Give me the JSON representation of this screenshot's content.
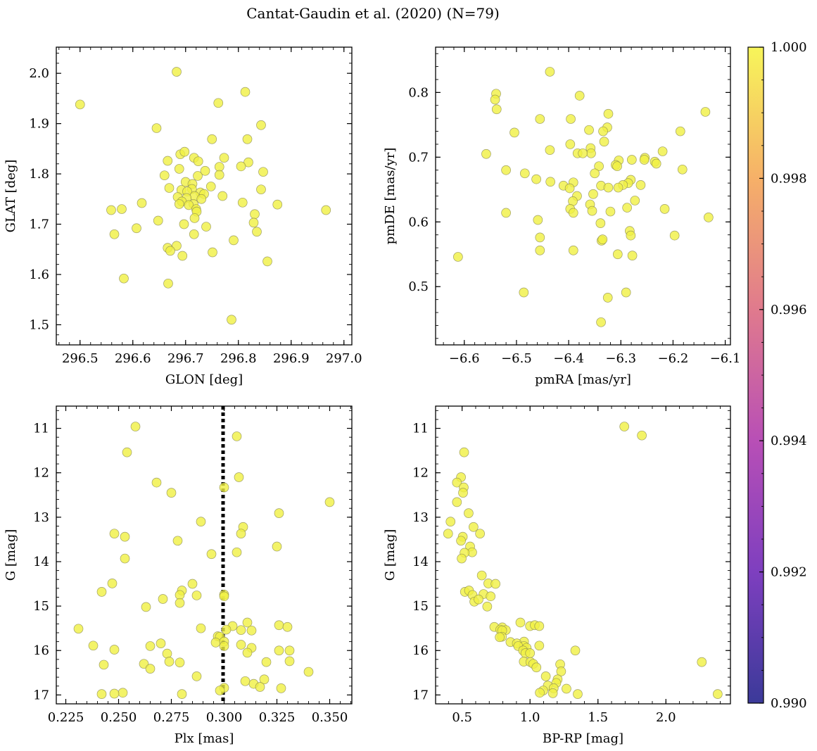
{
  "figure": {
    "title": "Cantat-Gaudin et al. (2020) (N=79)"
  },
  "colorbar": {
    "min": 0.99,
    "max": 1.0,
    "ticks": [
      0.99,
      0.992,
      0.994,
      0.996,
      0.998,
      1.0
    ],
    "tick_labels": [
      "0.990",
      "0.992",
      "0.994",
      "0.996",
      "0.998",
      "1.000"
    ],
    "colormap": "plasma",
    "colors": [
      "#3b3a99",
      "#7e3fbf",
      "#b84fb6",
      "#e07a8d",
      "#f6b068",
      "#f7f55a"
    ]
  },
  "style": {
    "marker_fill": "#f0f042",
    "marker_edge": "#8a8a52",
    "marker_alpha": 0.8,
    "vline_color": "#000000"
  },
  "chart_data": [
    {
      "type": "scatter",
      "xlabel": "GLON [deg]",
      "ylabel": "GLAT [deg]",
      "xlim": [
        296.455,
        297.015
      ],
      "ylim": [
        1.46,
        2.052
      ],
      "xticks": [
        296.5,
        296.6,
        296.7,
        296.8,
        296.9,
        297.0
      ],
      "xtick_labels": [
        "296.5",
        "296.6",
        "296.7",
        "296.8",
        "296.9",
        "297.0"
      ],
      "yticks": [
        1.5,
        1.6,
        1.7,
        1.8,
        1.9,
        2.0
      ],
      "ytick_labels": [
        "1.5",
        "1.6",
        "1.7",
        "1.8",
        "1.9",
        "2.0"
      ],
      "points": [
        [
          296.5,
          1.938
        ],
        [
          296.683,
          2.003
        ],
        [
          296.813,
          1.963
        ],
        [
          296.762,
          1.941
        ],
        [
          296.645,
          1.891
        ],
        [
          296.843,
          1.897
        ],
        [
          296.75,
          1.869
        ],
        [
          296.817,
          1.869
        ],
        [
          296.69,
          1.839
        ],
        [
          296.698,
          1.844
        ],
        [
          296.666,
          1.826
        ],
        [
          296.716,
          1.832
        ],
        [
          296.773,
          1.832
        ],
        [
          296.724,
          1.825
        ],
        [
          296.819,
          1.823
        ],
        [
          296.805,
          1.815
        ],
        [
          296.764,
          1.814
        ],
        [
          296.688,
          1.81
        ],
        [
          296.737,
          1.806
        ],
        [
          296.847,
          1.804
        ],
        [
          296.764,
          1.798
        ],
        [
          296.66,
          1.797
        ],
        [
          296.723,
          1.796
        ],
        [
          296.7,
          1.784
        ],
        [
          296.713,
          1.78
        ],
        [
          296.748,
          1.775
        ],
        [
          296.669,
          1.772
        ],
        [
          296.692,
          1.768
        ],
        [
          296.712,
          1.77
        ],
        [
          296.703,
          1.765
        ],
        [
          296.728,
          1.763
        ],
        [
          296.843,
          1.769
        ],
        [
          296.717,
          1.756
        ],
        [
          296.735,
          1.76
        ],
        [
          296.77,
          1.756
        ],
        [
          296.73,
          1.75
        ],
        [
          296.702,
          1.752
        ],
        [
          296.685,
          1.754
        ],
        [
          296.693,
          1.745
        ],
        [
          296.715,
          1.74
        ],
        [
          296.706,
          1.738
        ],
        [
          296.688,
          1.74
        ],
        [
          296.617,
          1.742
        ],
        [
          296.808,
          1.743
        ],
        [
          296.874,
          1.739
        ],
        [
          296.72,
          1.73
        ],
        [
          296.721,
          1.725
        ],
        [
          296.559,
          1.728
        ],
        [
          296.579,
          1.73
        ],
        [
          296.966,
          1.728
        ],
        [
          296.831,
          1.72
        ],
        [
          296.717,
          1.712
        ],
        [
          296.648,
          1.707
        ],
        [
          296.697,
          1.7
        ],
        [
          296.829,
          1.703
        ],
        [
          296.739,
          1.695
        ],
        [
          296.607,
          1.692
        ],
        [
          296.716,
          1.68
        ],
        [
          296.835,
          1.685
        ],
        [
          296.565,
          1.68
        ],
        [
          296.666,
          1.653
        ],
        [
          296.683,
          1.657
        ],
        [
          296.671,
          1.647
        ],
        [
          296.694,
          1.637
        ],
        [
          296.751,
          1.644
        ],
        [
          296.791,
          1.668
        ],
        [
          296.855,
          1.626
        ],
        [
          296.583,
          1.592
        ],
        [
          296.667,
          1.582
        ],
        [
          296.787,
          1.51
        ]
      ]
    },
    {
      "type": "scatter",
      "xlabel": "pmRA [mas/yr]",
      "ylabel": "pmDE [mas/yr]",
      "xlim": [
        -6.655,
        -6.09
      ],
      "ylim": [
        0.41,
        0.87
      ],
      "xticks": [
        -6.6,
        -6.5,
        -6.4,
        -6.3,
        -6.2,
        -6.1
      ],
      "xtick_labels": [
        "−6.6",
        "−6.5",
        "−6.4",
        "−6.3",
        "−6.2",
        "−6.1"
      ],
      "yticks": [
        0.5,
        0.6,
        0.7,
        0.8
      ],
      "ytick_labels": [
        "0.5",
        "0.6",
        "0.7",
        "0.8"
      ],
      "points": [
        [
          -6.436,
          0.832
        ],
        [
          -6.539,
          0.798
        ],
        [
          -6.541,
          0.789
        ],
        [
          -6.379,
          0.795
        ],
        [
          -6.538,
          0.774
        ],
        [
          -6.138,
          0.77
        ],
        [
          -6.324,
          0.767
        ],
        [
          -6.455,
          0.759
        ],
        [
          -6.396,
          0.759
        ],
        [
          -6.326,
          0.746
        ],
        [
          -6.361,
          0.742
        ],
        [
          -6.334,
          0.74
        ],
        [
          -6.186,
          0.74
        ],
        [
          -6.504,
          0.738
        ],
        [
          -6.332,
          0.724
        ],
        [
          -6.397,
          0.72
        ],
        [
          -6.436,
          0.711
        ],
        [
          -6.358,
          0.714
        ],
        [
          -6.357,
          0.706
        ],
        [
          -6.383,
          0.706
        ],
        [
          -6.373,
          0.706
        ],
        [
          -6.22,
          0.709
        ],
        [
          -6.558,
          0.705
        ],
        [
          -6.304,
          0.695
        ],
        [
          -6.279,
          0.696
        ],
        [
          -6.254,
          0.699
        ],
        [
          -6.255,
          0.696
        ],
        [
          -6.235,
          0.693
        ],
        [
          -6.232,
          0.69
        ],
        [
          -6.31,
          0.688
        ],
        [
          -6.342,
          0.686
        ],
        [
          -6.307,
          0.686
        ],
        [
          -6.182,
          0.681
        ],
        [
          -6.52,
          0.68
        ],
        [
          -6.484,
          0.675
        ],
        [
          -6.35,
          0.675
        ],
        [
          -6.462,
          0.666
        ],
        [
          -6.281,
          0.665
        ],
        [
          -6.286,
          0.66
        ],
        [
          -6.435,
          0.662
        ],
        [
          -6.41,
          0.656
        ],
        [
          -6.296,
          0.657
        ],
        [
          -6.338,
          0.656
        ],
        [
          -6.324,
          0.653
        ],
        [
          -6.262,
          0.657
        ],
        [
          -6.391,
          0.661
        ],
        [
          -6.398,
          0.652
        ],
        [
          -6.305,
          0.653
        ],
        [
          -6.384,
          0.64
        ],
        [
          -6.353,
          0.643
        ],
        [
          -6.273,
          0.633
        ],
        [
          -6.392,
          0.632
        ],
        [
          -6.359,
          0.627
        ],
        [
          -6.397,
          0.62
        ],
        [
          -6.288,
          0.622
        ],
        [
          -6.355,
          0.617
        ],
        [
          -6.32,
          0.616
        ],
        [
          -6.216,
          0.62
        ],
        [
          -6.391,
          0.614
        ],
        [
          -6.52,
          0.614
        ],
        [
          -6.132,
          0.607
        ],
        [
          -6.459,
          0.603
        ],
        [
          -6.339,
          0.598
        ],
        [
          -6.197,
          0.579
        ],
        [
          -6.455,
          0.576
        ],
        [
          -6.283,
          0.586
        ],
        [
          -6.281,
          0.579
        ],
        [
          -6.337,
          0.571
        ],
        [
          -6.335,
          0.573
        ],
        [
          -6.612,
          0.546
        ],
        [
          -6.455,
          0.556
        ],
        [
          -6.391,
          0.556
        ],
        [
          -6.306,
          0.55
        ],
        [
          -6.278,
          0.548
        ],
        [
          -6.486,
          0.491
        ],
        [
          -6.29,
          0.491
        ],
        [
          -6.325,
          0.483
        ],
        [
          -6.338,
          0.445
        ]
      ]
    },
    {
      "type": "scatter",
      "xlabel": "Plx [mas]",
      "ylabel": "G [mag]",
      "xlim": [
        0.2205,
        0.3605
      ],
      "ylim": [
        17.2,
        10.5
      ],
      "y_inverted": true,
      "xticks": [
        0.225,
        0.25,
        0.275,
        0.3,
        0.325,
        0.35
      ],
      "xtick_labels": [
        "0.225",
        "0.250",
        "0.275",
        "0.300",
        "0.325",
        "0.350"
      ],
      "yticks": [
        11,
        12,
        13,
        14,
        15,
        16,
        17
      ],
      "ytick_labels": [
        "11",
        "12",
        "13",
        "14",
        "15",
        "16",
        "17"
      ],
      "vline_x": 0.2995,
      "points": [
        [
          0.258,
          10.96
        ],
        [
          0.306,
          11.18
        ],
        [
          0.254,
          11.54
        ],
        [
          0.307,
          12.1
        ],
        [
          0.268,
          12.22
        ],
        [
          0.3,
          12.33
        ],
        [
          0.275,
          12.45
        ],
        [
          0.35,
          12.66
        ],
        [
          0.326,
          12.91
        ],
        [
          0.289,
          13.1
        ],
        [
          0.309,
          13.22
        ],
        [
          0.308,
          13.37
        ],
        [
          0.248,
          13.37
        ],
        [
          0.253,
          13.44
        ],
        [
          0.278,
          13.53
        ],
        [
          0.325,
          13.66
        ],
        [
          0.306,
          13.79
        ],
        [
          0.294,
          13.83
        ],
        [
          0.253,
          13.93
        ],
        [
          0.247,
          14.49
        ],
        [
          0.285,
          14.5
        ],
        [
          0.242,
          14.68
        ],
        [
          0.28,
          14.65
        ],
        [
          0.279,
          14.75
        ],
        [
          0.287,
          14.76
        ],
        [
          0.3,
          14.74
        ],
        [
          0.3,
          14.78
        ],
        [
          0.271,
          14.84
        ],
        [
          0.279,
          14.93
        ],
        [
          0.263,
          15.02
        ],
        [
          0.311,
          15.37
        ],
        [
          0.304,
          15.45
        ],
        [
          0.326,
          15.43
        ],
        [
          0.33,
          15.47
        ],
        [
          0.289,
          15.5
        ],
        [
          0.231,
          15.51
        ],
        [
          0.301,
          15.53
        ],
        [
          0.308,
          15.54
        ],
        [
          0.313,
          15.55
        ],
        [
          0.297,
          15.68
        ],
        [
          0.298,
          15.69
        ],
        [
          0.296,
          15.82
        ],
        [
          0.3,
          15.8
        ],
        [
          0.27,
          15.84
        ],
        [
          0.3,
          15.9
        ],
        [
          0.238,
          15.89
        ],
        [
          0.265,
          15.9
        ],
        [
          0.308,
          15.87
        ],
        [
          0.313,
          15.94
        ],
        [
          0.248,
          15.98
        ],
        [
          0.326,
          16.0
        ],
        [
          0.331,
          16.0
        ],
        [
          0.273,
          16.07
        ],
        [
          0.311,
          16.05
        ],
        [
          0.274,
          16.25
        ],
        [
          0.279,
          16.27
        ],
        [
          0.32,
          16.26
        ],
        [
          0.331,
          16.24
        ],
        [
          0.243,
          16.32
        ],
        [
          0.262,
          16.3
        ],
        [
          0.265,
          16.41
        ],
        [
          0.34,
          16.48
        ],
        [
          0.287,
          16.58
        ],
        [
          0.319,
          16.65
        ],
        [
          0.31,
          16.69
        ],
        [
          0.314,
          16.75
        ],
        [
          0.317,
          16.82
        ],
        [
          0.327,
          16.85
        ],
        [
          0.3,
          16.84
        ],
        [
          0.298,
          16.9
        ],
        [
          0.252,
          16.95
        ],
        [
          0.248,
          16.97
        ],
        [
          0.242,
          16.98
        ],
        [
          0.28,
          16.98
        ]
      ]
    },
    {
      "type": "scatter",
      "xlabel": "BP-RP [mag]",
      "ylabel": "G [mag]",
      "xlim": [
        0.305,
        2.475
      ],
      "ylim": [
        17.2,
        10.5
      ],
      "y_inverted": true,
      "xticks": [
        0.5,
        1.0,
        1.5,
        2.0
      ],
      "xtick_labels": [
        "0.5",
        "1.0",
        "1.5",
        "2.0"
      ],
      "yticks": [
        11,
        12,
        13,
        14,
        15,
        16,
        17
      ],
      "ytick_labels": [
        "11",
        "12",
        "13",
        "14",
        "15",
        "16",
        "17"
      ],
      "points": [
        [
          1.694,
          10.96
        ],
        [
          1.823,
          11.16
        ],
        [
          0.515,
          11.54
        ],
        [
          0.492,
          12.1
        ],
        [
          0.462,
          12.22
        ],
        [
          0.512,
          12.33
        ],
        [
          0.507,
          12.45
        ],
        [
          0.462,
          12.66
        ],
        [
          0.548,
          12.91
        ],
        [
          0.415,
          13.1
        ],
        [
          0.584,
          13.22
        ],
        [
          0.397,
          13.37
        ],
        [
          0.632,
          13.37
        ],
        [
          0.505,
          13.44
        ],
        [
          0.492,
          13.53
        ],
        [
          0.559,
          13.66
        ],
        [
          0.574,
          13.79
        ],
        [
          0.518,
          13.8
        ],
        [
          0.497,
          13.93
        ],
        [
          0.645,
          14.31
        ],
        [
          0.693,
          14.49
        ],
        [
          0.746,
          14.5
        ],
        [
          0.521,
          14.68
        ],
        [
          0.551,
          14.65
        ],
        [
          0.577,
          14.75
        ],
        [
          0.658,
          14.73
        ],
        [
          0.71,
          14.78
        ],
        [
          0.59,
          14.9
        ],
        [
          0.621,
          14.85
        ],
        [
          0.685,
          15.01
        ],
        [
          0.929,
          15.37
        ],
        [
          1.0,
          15.45
        ],
        [
          1.035,
          15.43
        ],
        [
          1.068,
          15.45
        ],
        [
          0.737,
          15.47
        ],
        [
          0.796,
          15.48
        ],
        [
          0.781,
          15.53
        ],
        [
          0.822,
          15.54
        ],
        [
          0.795,
          15.55
        ],
        [
          0.793,
          15.69
        ],
        [
          0.777,
          15.7
        ],
        [
          0.856,
          15.81
        ],
        [
          0.956,
          15.8
        ],
        [
          0.903,
          15.84
        ],
        [
          0.955,
          15.9
        ],
        [
          1.068,
          15.89
        ],
        [
          0.913,
          15.9
        ],
        [
          0.975,
          15.94
        ],
        [
          0.949,
          16.0
        ],
        [
          1.333,
          16.0
        ],
        [
          0.966,
          16.06
        ],
        [
          1.0,
          16.06
        ],
        [
          2.264,
          16.26
        ],
        [
          0.954,
          16.25
        ],
        [
          1.003,
          16.26
        ],
        [
          1.024,
          16.3
        ],
        [
          1.222,
          16.31
        ],
        [
          1.047,
          16.38
        ],
        [
          1.229,
          16.47
        ],
        [
          1.116,
          16.58
        ],
        [
          1.203,
          16.65
        ],
        [
          1.193,
          16.73
        ],
        [
          1.131,
          16.79
        ],
        [
          1.268,
          16.86
        ],
        [
          1.174,
          16.85
        ],
        [
          1.097,
          16.9
        ],
        [
          1.072,
          16.95
        ],
        [
          1.168,
          16.96
        ],
        [
          1.351,
          16.98
        ],
        [
          2.381,
          16.98
        ]
      ]
    }
  ]
}
